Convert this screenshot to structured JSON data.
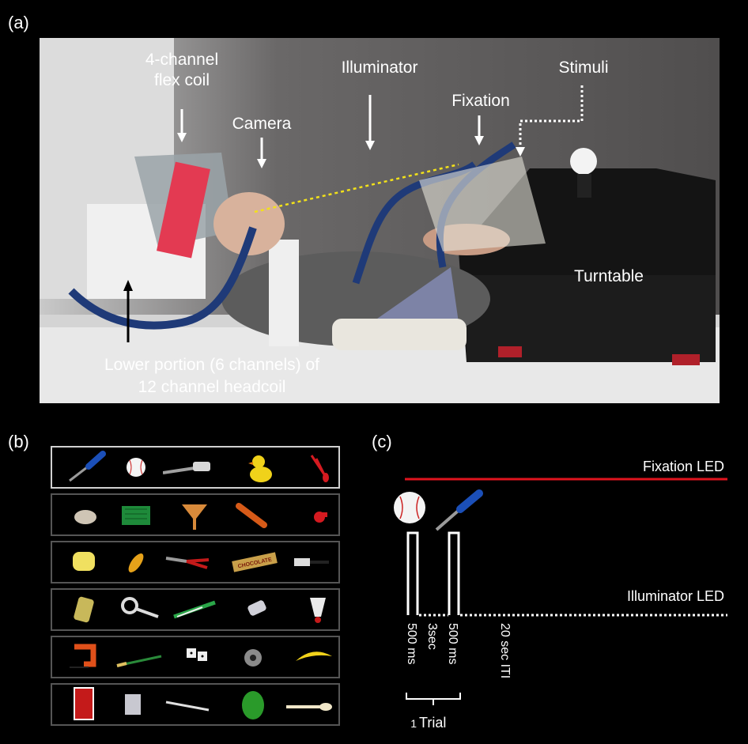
{
  "panels": {
    "a": "(a)",
    "b": "(b)",
    "c": "(c)"
  },
  "photo_labels": {
    "flex_coil_line1": "4-channel",
    "flex_coil_line2": "flex coil",
    "camera": "Camera",
    "illuminator": "Illuminator",
    "fixation": "Fixation",
    "stimuli": "Stimuli",
    "turntable": "Turntable",
    "headcoil_line1": "Lower portion (6 channels) of",
    "headcoil_line2": "12 channel headcoil"
  },
  "object_rows": [
    [
      "screwdriver",
      "baseball",
      "spatula",
      "rubber-duck",
      "scissors"
    ],
    [
      "seashell",
      "basket",
      "funnel",
      "hot-sauce",
      "whistle"
    ],
    [
      "sponge",
      "corn",
      "pliers",
      "chocolate-bar",
      "hair-brush"
    ],
    [
      "yarn-spool",
      "measuring-cup",
      "toothbrush",
      "glue-bottle",
      "shuttlecock"
    ],
    [
      "c-clamp",
      "paint-brush",
      "dice",
      "tape-dispenser",
      "banana"
    ],
    [
      "playing-cards",
      "tin-can",
      "fork",
      "toy-frog",
      "spoon"
    ]
  ],
  "object_labels": {
    "chocolate": "CHOCOLATE"
  },
  "timeline": {
    "fixation_led": "Fixation LED",
    "illuminator_led": "Illuminator LED",
    "dur1": "500 ms",
    "isi": "3sec",
    "dur2": "500 ms",
    "iti": "20 sec ITI",
    "trial_num": "1",
    "trial_word": "Trial"
  },
  "colors": {
    "fixation_line": "#e0141e",
    "annotation": "#ffffff",
    "gaze_line": "#f2e11a"
  }
}
